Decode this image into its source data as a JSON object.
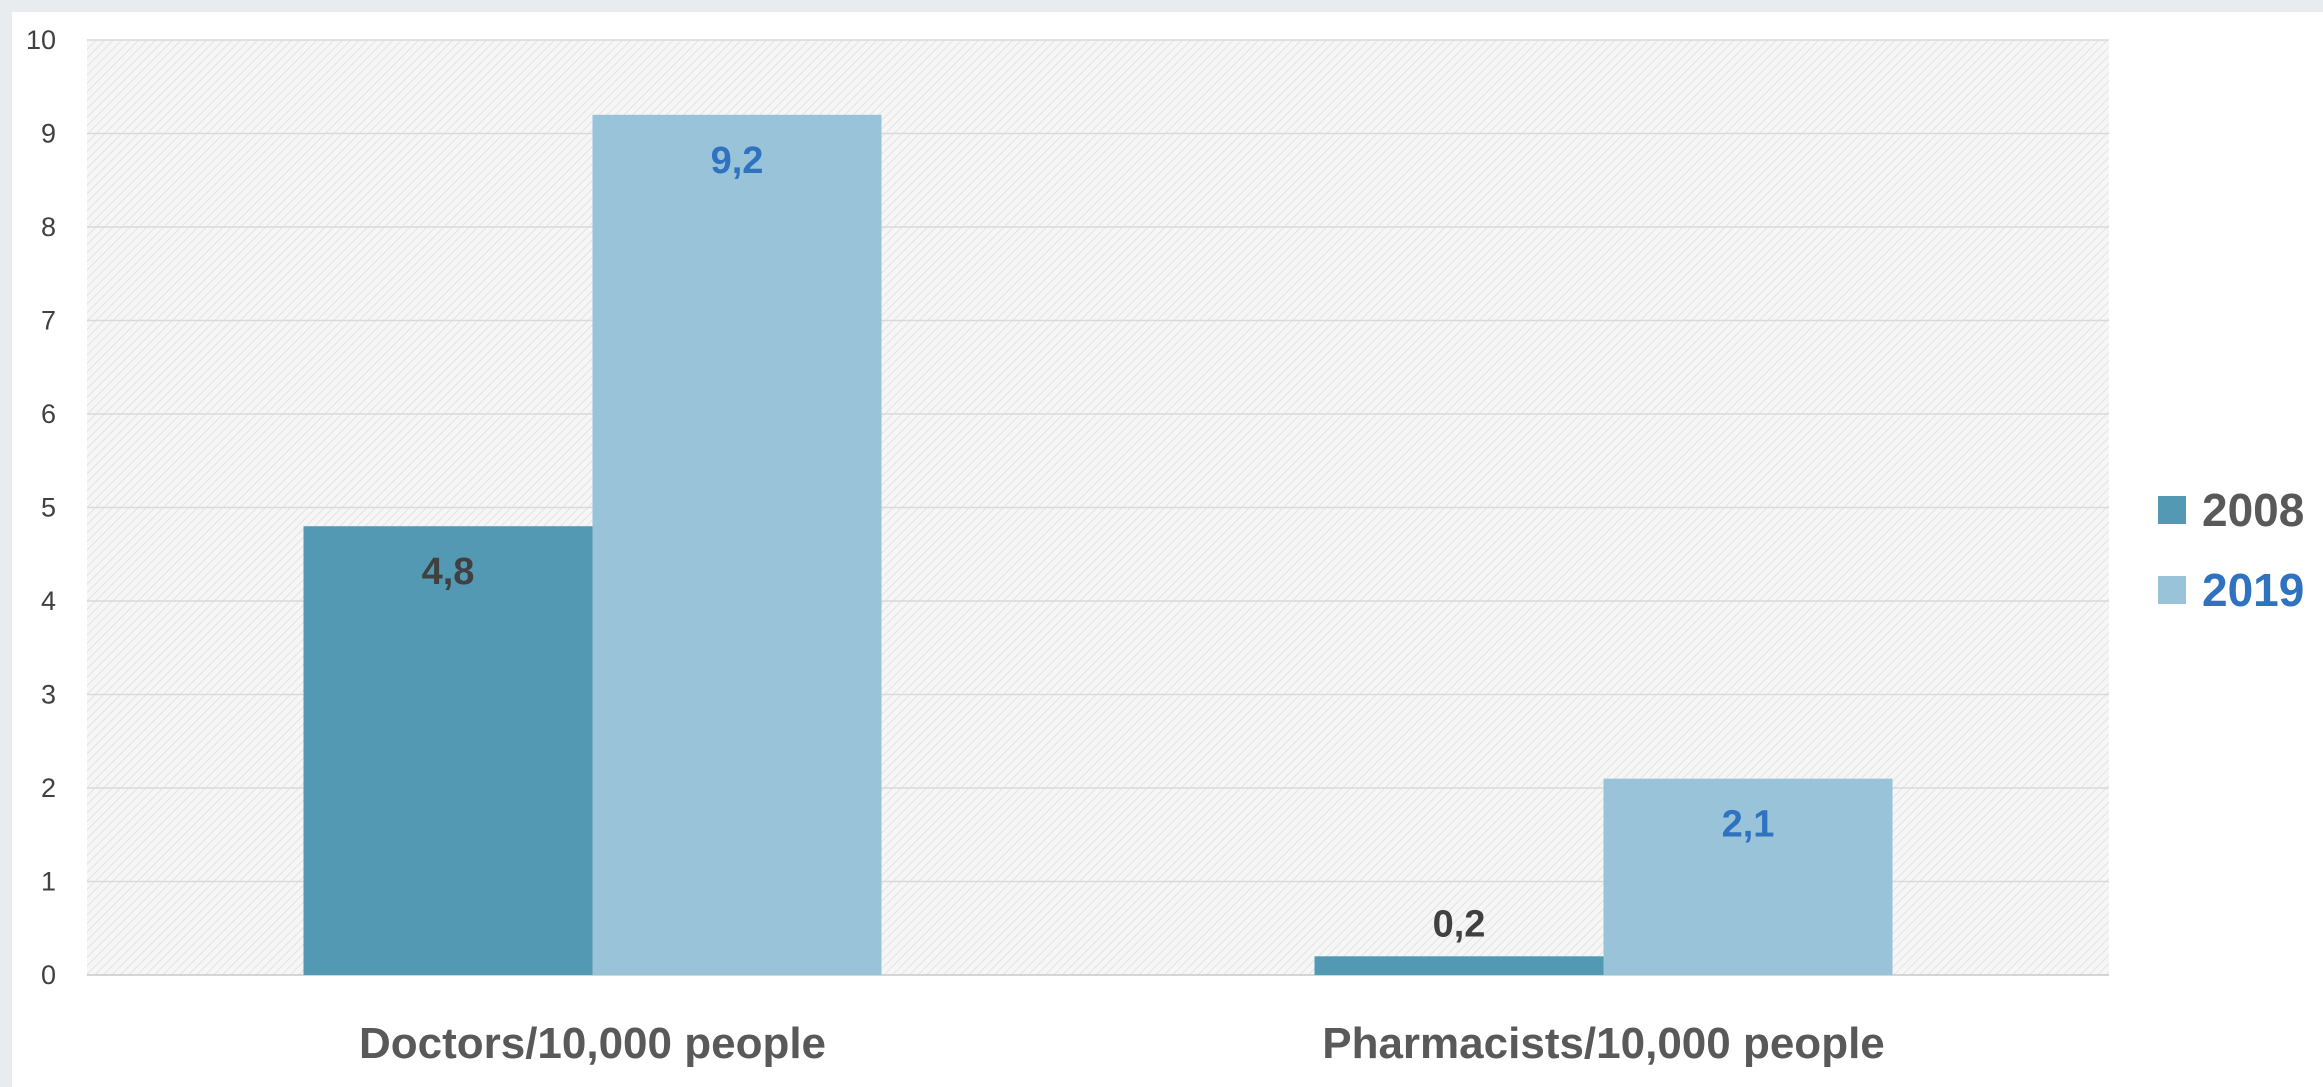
{
  "chart_data": {
    "type": "bar",
    "categories": [
      "Doctors/10,000 people",
      "Pharmacists/10,000 people"
    ],
    "series": [
      {
        "name": "2008",
        "values": [
          4.8,
          0.2
        ],
        "labels": [
          "4,8",
          "0,2"
        ],
        "color": "#5399b3",
        "label_color": "#404040",
        "label_position": "inside-end-or-above"
      },
      {
        "name": "2019",
        "values": [
          9.2,
          2.1
        ],
        "labels": [
          "9,2",
          "2,1"
        ],
        "color": "#98c3d9",
        "label_color": "#2e72c0",
        "label_position": "inside-end"
      }
    ],
    "title": "",
    "xlabel": "",
    "ylabel": "",
    "ylim": [
      0,
      10
    ],
    "yticks": [
      "0",
      "1",
      "2",
      "3",
      "4",
      "5",
      "6",
      "7",
      "8",
      "9",
      "10"
    ],
    "grid": true,
    "plot_background": "hatched light gray",
    "legend": {
      "placement": "right",
      "entries": [
        "2008",
        "2019"
      ],
      "text_colors": [
        "#595959",
        "#2e72c0"
      ]
    }
  }
}
